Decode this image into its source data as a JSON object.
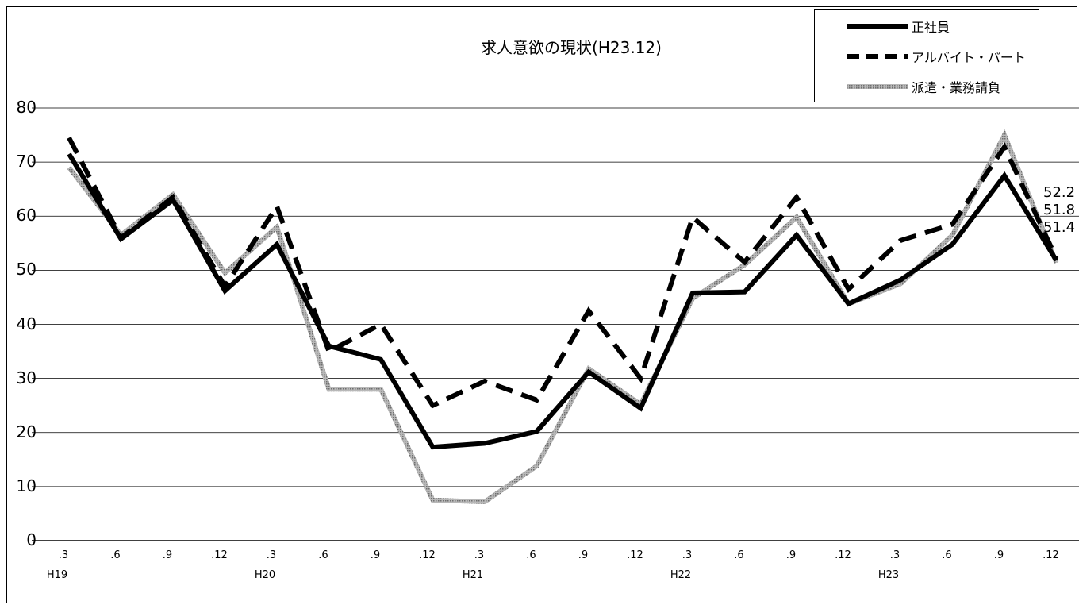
{
  "chart_data": {
    "type": "line",
    "title": "求人意欲の現状(H23.12)",
    "xlabel": "",
    "ylabel": "",
    "ylim": [
      0,
      80
    ],
    "yticks": [
      "0",
      "10",
      "20",
      "30",
      "40",
      "50",
      "60",
      "70",
      "80"
    ],
    "categories": [
      ".3",
      ".6",
      ".9",
      ".12",
      ".3",
      ".6",
      ".9",
      ".12",
      ".3",
      ".6",
      ".9",
      ".12",
      ".3",
      ".6",
      ".9",
      ".12",
      ".3",
      ".6",
      ".9",
      ".12"
    ],
    "year_labels": [
      "H19",
      "H20",
      "H21",
      "H22",
      "H23"
    ],
    "grid": true,
    "legend_position": "top-right",
    "series": [
      {
        "name": "正社員",
        "style": "solid",
        "color": "#000000",
        "values": [
          71.5,
          55.8,
          63.0,
          46.2,
          54.8,
          36.0,
          33.5,
          17.3,
          18.0,
          20.2,
          31.2,
          24.5,
          45.8,
          46.0,
          56.5,
          43.8,
          48.2,
          54.8,
          67.5,
          51.8
        ]
      },
      {
        "name": "アルバイト・パート",
        "style": "dashed",
        "color": "#000000",
        "values": [
          74.5,
          56.0,
          63.5,
          47.0,
          61.8,
          35.0,
          40.0,
          25.0,
          29.5,
          26.0,
          42.5,
          30.0,
          59.8,
          51.5,
          63.5,
          46.5,
          55.5,
          58.5,
          72.8,
          52.2
        ]
      },
      {
        "name": "派遣・業務請負",
        "style": "gray-hatched",
        "color": "#9e9e9e",
        "values": [
          69.0,
          56.5,
          64.0,
          49.5,
          58.0,
          28.0,
          28.0,
          7.5,
          7.2,
          13.8,
          31.8,
          25.2,
          44.8,
          51.0,
          59.8,
          43.8,
          47.5,
          56.5,
          75.0,
          51.4
        ]
      }
    ],
    "end_labels": [
      "52.2",
      "51.8",
      "51.4"
    ]
  }
}
